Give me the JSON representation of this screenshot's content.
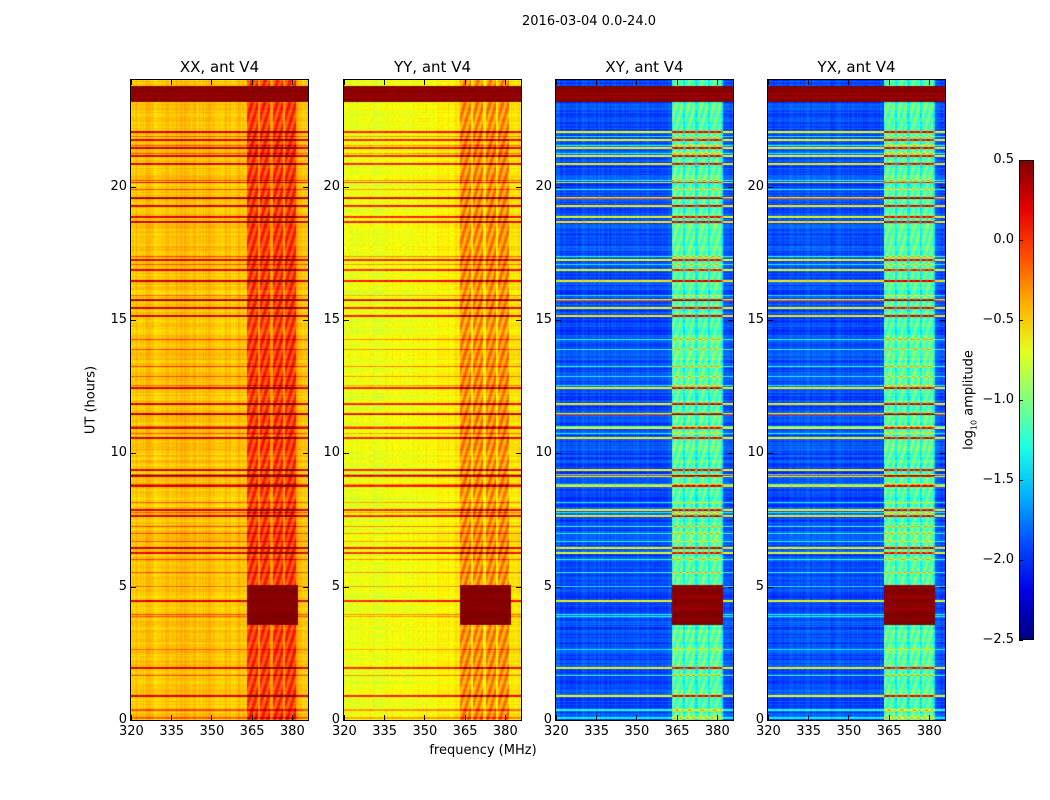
{
  "chart_data": {
    "type": "heatmap",
    "title": "2016-03-04 0.0-24.0",
    "xlabel": "frequency (MHz)",
    "ylabel": "UT (hours)",
    "xlim": [
      320,
      386
    ],
    "ylim": [
      0,
      24
    ],
    "xticks": [
      "320",
      "335",
      "350",
      "365",
      "380"
    ],
    "yticks": [
      "0",
      "5",
      "10",
      "15",
      "20"
    ],
    "colorbar": {
      "label_prefix": "log",
      "label_sub": "10",
      "label_suffix": " amplitude",
      "range": [
        -2.5,
        0.5
      ],
      "ticks": [
        "0.5",
        "0.0",
        "−0.5",
        "−1.0",
        "−1.5",
        "−2.0",
        "−2.5"
      ],
      "colormap": "jet"
    },
    "panels": [
      {
        "title": "XX, ant V4",
        "base_log_amp": -0.45,
        "band_log_amp": -0.05
      },
      {
        "title": "YY, ant V4",
        "base_log_amp": -0.7,
        "band_log_amp": -0.3
      },
      {
        "title": "XY, ant V4",
        "base_log_amp": -1.9,
        "band_log_amp": -1.1
      },
      {
        "title": "YX, ant V4",
        "base_log_amp": -1.9,
        "band_log_amp": -1.1
      }
    ],
    "band_mhz": [
      363,
      382
    ],
    "strong_rfi_hours": [
      [
        23.2,
        23.8
      ],
      [
        3.6,
        5.1
      ]
    ],
    "rfi_line_hours": [
      0.95,
      2.0,
      4.5,
      6.3,
      6.5,
      7.7,
      7.9,
      8.8,
      9.2,
      9.4,
      10.6,
      11.0,
      11.5,
      11.9,
      12.5,
      15.2,
      15.5,
      15.8,
      16.5,
      16.9,
      17.3,
      18.7,
      18.9,
      19.3,
      19.6,
      20.9,
      21.2,
      21.5,
      21.8,
      22.1
    ]
  }
}
